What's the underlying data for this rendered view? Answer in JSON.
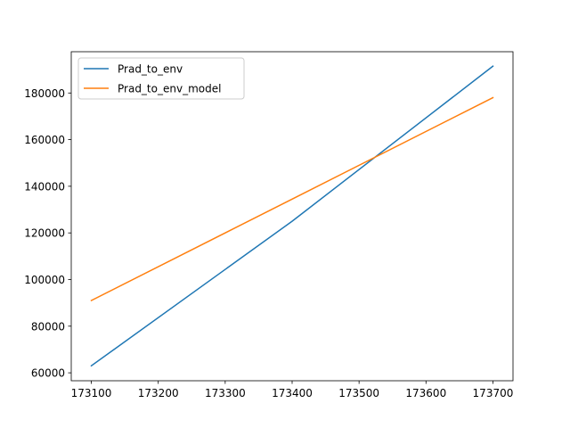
{
  "chart_data": {
    "type": "line",
    "title": "",
    "xlabel": "",
    "ylabel": "",
    "xlim": [
      173070,
      173730
    ],
    "ylim": [
      56600,
      197700
    ],
    "xticks": [
      173100,
      173200,
      173300,
      173400,
      173500,
      173600,
      173700
    ],
    "yticks": [
      60000,
      80000,
      100000,
      120000,
      140000,
      160000,
      180000
    ],
    "grid": false,
    "legend_position": "top-left",
    "series": [
      {
        "name": "Prad_to_env",
        "color": "#1f77b4",
        "x": [
          173100,
          173400,
          173700
        ],
        "y": [
          63000,
          125000,
          191500
        ]
      },
      {
        "name": "Prad_to_env_model",
        "color": "#ff7f0e",
        "x": [
          173100,
          173400,
          173700
        ],
        "y": [
          91000,
          134500,
          178000
        ]
      }
    ]
  }
}
